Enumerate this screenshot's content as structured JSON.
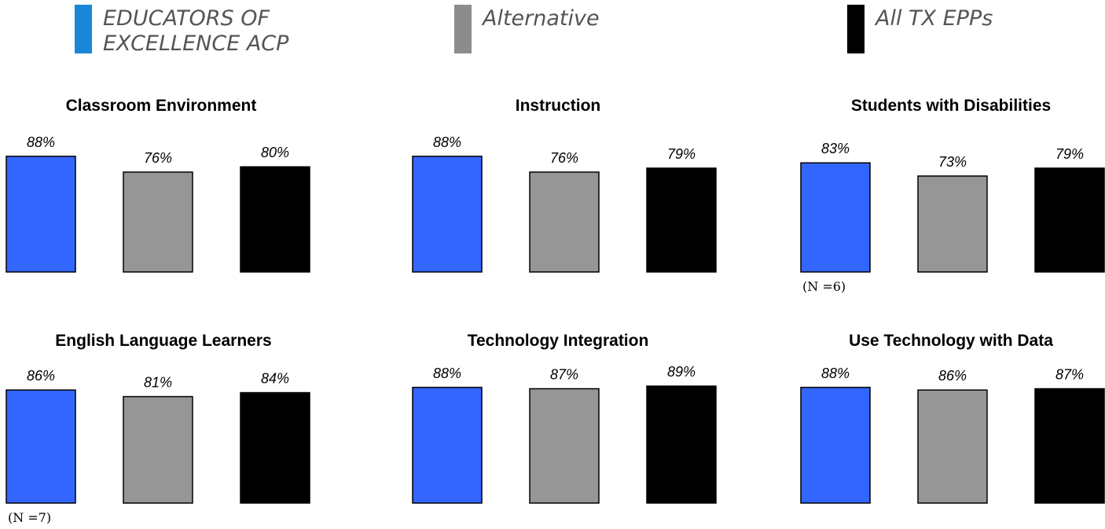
{
  "legend": [
    {
      "label_lines": [
        "EDUCATORS OF",
        "EXCELLENCE ACP"
      ],
      "color": "#1a87d6"
    },
    {
      "label_lines": [
        "Alternative"
      ],
      "color": "#8c8c8c"
    },
    {
      "label_lines": [
        "All TX EPPs"
      ],
      "color": "#000000"
    }
  ],
  "series_colors": [
    "#3366ff",
    "#969696",
    "#000000"
  ],
  "chart_data": [
    {
      "type": "bar",
      "title": "Classroom Environment",
      "values": [
        88,
        76,
        80
      ],
      "labels": [
        "88%",
        "76%",
        "80%"
      ],
      "note": ""
    },
    {
      "type": "bar",
      "title": "Instruction",
      "values": [
        88,
        76,
        79
      ],
      "labels": [
        "88%",
        "76%",
        "79%"
      ],
      "note": ""
    },
    {
      "type": "bar",
      "title": "Students with Disabilities",
      "values": [
        83,
        73,
        79
      ],
      "labels": [
        "83%",
        "73%",
        "79%"
      ],
      "note": "(N =6)"
    },
    {
      "type": "bar",
      "title": "English Language Learners",
      "values": [
        86,
        81,
        84
      ],
      "labels": [
        "86%",
        "81%",
        "84%"
      ],
      "note": "(N =7)"
    },
    {
      "type": "bar",
      "title": "Technology Integration",
      "values": [
        88,
        87,
        89
      ],
      "labels": [
        "88%",
        "87%",
        "89%"
      ],
      "note": ""
    },
    {
      "type": "bar",
      "title": "Use Technology with Data",
      "values": [
        88,
        86,
        87
      ],
      "labels": [
        "88%",
        "86%",
        "87%"
      ],
      "note": ""
    }
  ]
}
